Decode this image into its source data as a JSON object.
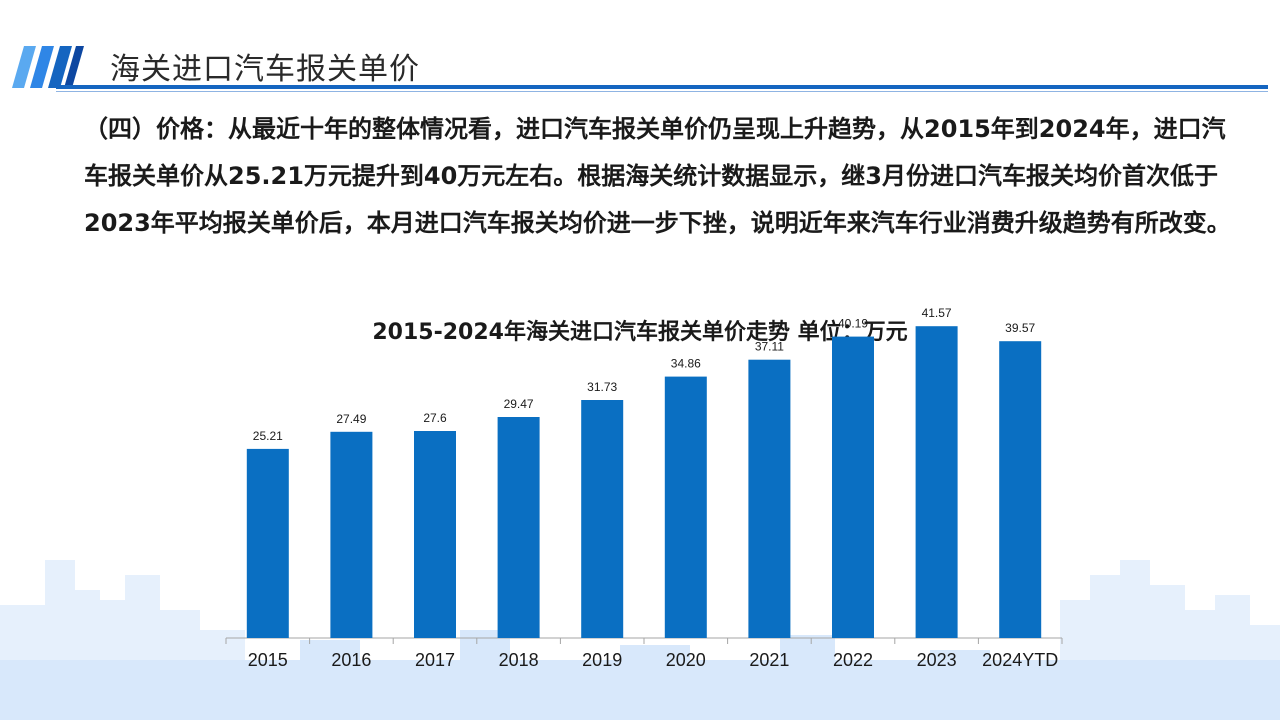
{
  "header": {
    "title": "海关进口汽车报关单价"
  },
  "main": {
    "paragraph": "（四）价格：从最近十年的整体情况看，进口汽车报关单价仍呈现上升趋势，从2015年到2024年，进口汽车报关单价从25.21万元提升到40万元左右。根据海关统计数据显示，继3月份进口汽车报关均价首次低于2023年平均报关单价后，本月进口汽车报关均价进一步下挫，说明近年来汽车行业消费升级趋势有所改变。"
  },
  "colors": {
    "bar": "#0a6fc2",
    "accent": "#1565c0",
    "city": "#e3eefb"
  },
  "chart_data": {
    "type": "bar",
    "title": "2015-2024年海关进口汽车报关单价走势 单位：万元",
    "categories": [
      "2015",
      "2016",
      "2017",
      "2018",
      "2019",
      "2020",
      "2021",
      "2022",
      "2023",
      "2024YTD"
    ],
    "values": [
      25.21,
      27.49,
      27.6,
      29.47,
      31.73,
      34.86,
      37.11,
      40.19,
      41.57,
      39.57
    ],
    "value_labels": [
      "25.21",
      "27.49",
      "27.6",
      "29.47",
      "31.73",
      "34.86",
      "37.11",
      "40.19",
      "41.57",
      "39.57"
    ],
    "xlabel": "",
    "ylabel": "",
    "ylim": [
      0,
      43.5
    ],
    "grid": false,
    "legend": "none"
  }
}
